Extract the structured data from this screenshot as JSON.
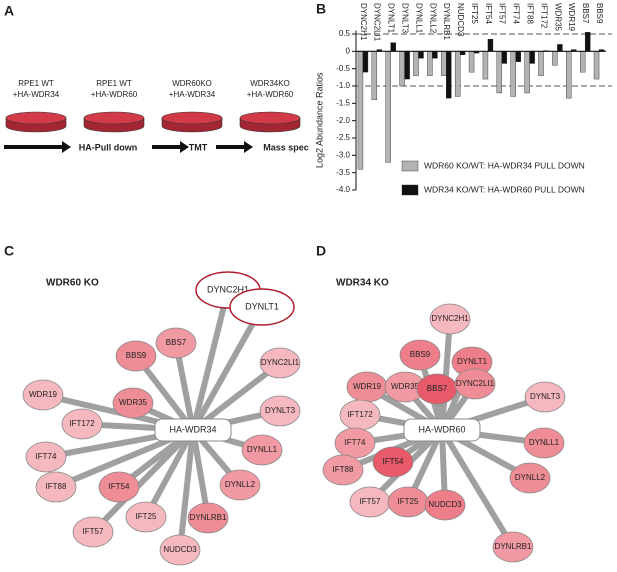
{
  "panels": [
    "A",
    "B",
    "C",
    "D"
  ],
  "workflow": {
    "samples": [
      {
        "lines": [
          "RPE1 WT",
          "+HA-WDR34"
        ]
      },
      {
        "lines": [
          "RPE1 WT",
          "+HA-WDR60"
        ]
      },
      {
        "lines": [
          "WDR60KO",
          "+HA-WDR34"
        ]
      },
      {
        "lines": [
          "WDR34KO",
          "+HA-WDR60"
        ]
      }
    ],
    "steps": [
      "HA-Pull down",
      "TMT",
      "Mass spec"
    ]
  },
  "chart_data": {
    "type": "bar",
    "y_label": "Log2 Abundance Ratios",
    "categories": [
      "DYNC2H1",
      "DYNC2LI1",
      "DYNLT1",
      "DYNLT3",
      "DYNLL1",
      "DYNLL2",
      "DYNLRB1",
      "NUDCD3",
      "IFT25",
      "IFT54",
      "IFT57",
      "IFT74",
      "IFT88",
      "IFT172",
      "WDR35",
      "WDR19",
      "BBS7",
      "BBS9"
    ],
    "series": [
      {
        "name": "WDR60 KO/WT: HA-WDR34 PULL DOWN",
        "color": "#b3b3b3",
        "values": [
          -3.4,
          -1.4,
          -3.2,
          -1.0,
          -0.7,
          -0.7,
          -0.7,
          -1.3,
          -0.6,
          -0.8,
          -1.2,
          -1.3,
          -1.2,
          -0.7,
          -0.4,
          -1.35,
          -0.6,
          -0.8
        ]
      },
      {
        "name": "WDR34 KO/WT: HA-WDR60 PULL DOWN",
        "color": "#111111",
        "values": [
          -0.6,
          0.05,
          0.25,
          -0.8,
          -0.2,
          -0.2,
          -1.35,
          -0.1,
          -0.05,
          0.35,
          -0.35,
          -0.3,
          -0.35,
          0.02,
          0.2,
          0.05,
          0.55,
          0.05
        ]
      }
    ],
    "ylim": [
      -4.0,
      0.6
    ],
    "yticks": [
      0.5,
      0,
      -0.5,
      {
        "value": -1,
        "label": "-1.0"
      },
      -1.5,
      {
        "value": -2,
        "label": "-2.0"
      },
      -2.5,
      {
        "value": -3,
        "label": "-3.0"
      },
      -3.5,
      {
        "value": -4,
        "label": "-4.0"
      }
    ],
    "reference_lines": [
      0.5,
      -1
    ]
  },
  "network_c": {
    "title": "WDR60 KO",
    "center": "HA-WDR34",
    "nodes": [
      {
        "label": "DYNC2H1",
        "color": "#ffffff"
      },
      {
        "label": "DYNLT1",
        "color": "#ffffff"
      },
      {
        "label": "DYNC2LI1",
        "color": "#f6b8bf"
      },
      {
        "label": "DYNLT3",
        "color": "#f6b8bf"
      },
      {
        "label": "DYNLL1",
        "color": "#f19aa3"
      },
      {
        "label": "DYNLL2",
        "color": "#f19aa3"
      },
      {
        "label": "DYNLRB1",
        "color": "#ef8d97"
      },
      {
        "label": "NUDCD3",
        "color": "#f6b8bf"
      },
      {
        "label": "IFT25",
        "color": "#f6b8bf"
      },
      {
        "label": "IFT57",
        "color": "#f6b8bf"
      },
      {
        "label": "IFT54",
        "color": "#ef8d97"
      },
      {
        "label": "IFT88",
        "color": "#f6b8bf"
      },
      {
        "label": "IFT74",
        "color": "#f6b8bf"
      },
      {
        "label": "IFT172",
        "color": "#f6b8bf"
      },
      {
        "label": "WDR19",
        "color": "#f6b8bf"
      },
      {
        "label": "WDR35",
        "color": "#ef8d97"
      },
      {
        "label": "BBS9",
        "color": "#ef8d97"
      },
      {
        "label": "BBS7",
        "color": "#f19aa3"
      }
    ]
  },
  "network_d": {
    "title": "WDR34 KO",
    "center": "HA-WDR60",
    "nodes": [
      {
        "label": "DYNC2H1",
        "color": "#f6b8bf"
      },
      {
        "label": "BBS9",
        "color": "#ee7f8a"
      },
      {
        "label": "DYNLT1",
        "color": "#ee7f8a"
      },
      {
        "label": "WDR19",
        "color": "#ef8d97"
      },
      {
        "label": "WDR35",
        "color": "#f19aa3"
      },
      {
        "label": "BBS7",
        "color": "#e8596a"
      },
      {
        "label": "DYNC2LI1",
        "color": "#ef8d97"
      },
      {
        "label": "DYNLT3",
        "color": "#f6b8bf"
      },
      {
        "label": "IFT172",
        "color": "#f6b8bf"
      },
      {
        "label": "IFT74",
        "color": "#f19aa3"
      },
      {
        "label": "IFT88",
        "color": "#f19aa3"
      },
      {
        "label": "IFT54",
        "color": "#e8596a"
      },
      {
        "label": "DYNLL1",
        "color": "#ef8d97"
      },
      {
        "label": "DYNLL2",
        "color": "#ef8d97"
      },
      {
        "label": "IFT57",
        "color": "#f6b8bf"
      },
      {
        "label": "IFT25",
        "color": "#ef8d97"
      },
      {
        "label": "NUDCD3",
        "color": "#ee7f8a"
      },
      {
        "label": "DYNLRB1",
        "color": "#f19aa3"
      }
    ]
  }
}
